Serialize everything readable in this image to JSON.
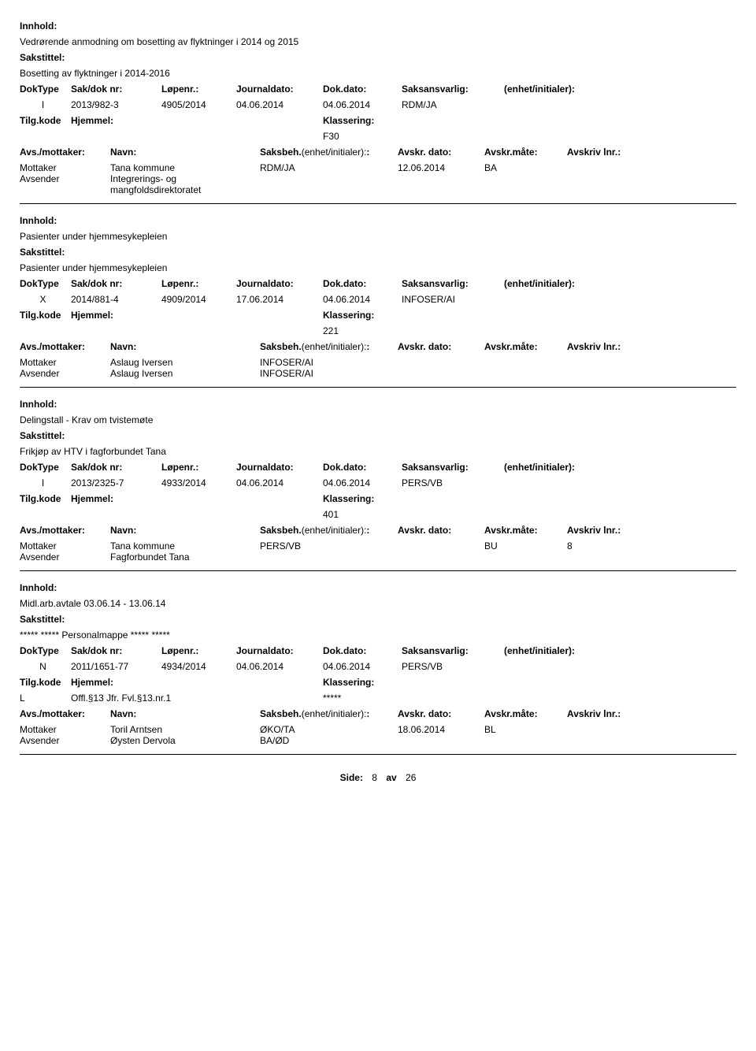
{
  "labels": {
    "innhold": "Innhold:",
    "sakstittel": "Sakstittel:",
    "doktype": "DokType",
    "sakdok": "Sak/dok nr:",
    "lopenr": "Løpenr.:",
    "journaldato": "Journaldato:",
    "dokdato": "Dok.dato:",
    "saksansvarlig": "Saksansvarlig:",
    "enhet": "(enhet/initialer):",
    "tilgkode": "Tilg.kode",
    "hjemmel": "Hjemmel:",
    "klassering": "Klassering:",
    "avsmottaker": "Avs./mottaker:",
    "navn": "Navn:",
    "saksbeh": "Saksbeh.",
    "avskrdato": "Avskr. dato:",
    "avskrmate": "Avskr.måte:",
    "avskriv": "Avskriv lnr.:",
    "mottaker": "Mottaker",
    "avsender": "Avsender"
  },
  "records": [
    {
      "innhold": "Vedrørende anmodning om bosetting av flyktninger i 2014 og 2015",
      "sakstittel": "Bosetting av flyktninger i 2014-2016",
      "doktype": "I",
      "sakdok": "2013/982-3",
      "lopenr": "4905/2014",
      "journaldato": "04.06.2014",
      "dokdato": "04.06.2014",
      "saksansvarlig": "RDM/JA",
      "tilgkode": "",
      "hjemmel": "",
      "klassering": "F30",
      "parties": [
        {
          "role": "Mottaker",
          "name": "Tana kommune",
          "saksbeh": "RDM/JA",
          "avskrdato": "12.06.2014",
          "avskrmate": "BA",
          "avskriv": ""
        },
        {
          "role": "Avsender",
          "name": "Integrerings- og mangfoldsdirektoratet",
          "saksbeh": "",
          "avskrdato": "",
          "avskrmate": "",
          "avskriv": ""
        }
      ]
    },
    {
      "innhold": "Pasienter under hjemmesykepleien",
      "sakstittel": "Pasienter under hjemmesykepleien",
      "doktype": "X",
      "sakdok": "2014/881-4",
      "lopenr": "4909/2014",
      "journaldato": "17.06.2014",
      "dokdato": "04.06.2014",
      "saksansvarlig": "INFOSER/AI",
      "tilgkode": "",
      "hjemmel": "",
      "klassering": "221",
      "parties": [
        {
          "role": "Mottaker",
          "name": "Aslaug Iversen",
          "saksbeh": "INFOSER/AI",
          "avskrdato": "",
          "avskrmate": "",
          "avskriv": ""
        },
        {
          "role": "Avsender",
          "name": "Aslaug Iversen",
          "saksbeh": "INFOSER/AI",
          "avskrdato": "",
          "avskrmate": "",
          "avskriv": ""
        }
      ]
    },
    {
      "innhold": "Delingstall - Krav om tvistemøte",
      "sakstittel": "Frikjøp av HTV i fagforbundet Tana",
      "doktype": "I",
      "sakdok": "2013/2325-7",
      "lopenr": "4933/2014",
      "journaldato": "04.06.2014",
      "dokdato": "04.06.2014",
      "saksansvarlig": "PERS/VB",
      "tilgkode": "",
      "hjemmel": "",
      "klassering": "401",
      "parties": [
        {
          "role": "Mottaker",
          "name": "Tana kommune",
          "saksbeh": "PERS/VB",
          "avskrdato": "",
          "avskrmate": "BU",
          "avskriv": "8"
        },
        {
          "role": "Avsender",
          "name": "Fagforbundet Tana",
          "saksbeh": "",
          "avskrdato": "",
          "avskrmate": "",
          "avskriv": ""
        }
      ]
    },
    {
      "innhold": "Midl.arb.avtale 03.06.14 - 13.06.14",
      "sakstittel": "***** ***** Personalmappe ***** *****",
      "doktype": "N",
      "sakdok": "2011/1651-77",
      "lopenr": "4934/2014",
      "journaldato": "04.06.2014",
      "dokdato": "04.06.2014",
      "saksansvarlig": "PERS/VB",
      "tilgkode": "L",
      "hjemmel": "Offl.§13 Jfr. Fvl.§13.nr.1",
      "klassering": "*****",
      "parties": [
        {
          "role": "Mottaker",
          "name": "Toril Arntsen",
          "saksbeh": "ØKO/TA",
          "avskrdato": "18.06.2014",
          "avskrmate": "BL",
          "avskriv": ""
        },
        {
          "role": "Avsender",
          "name": "Øysten Dervola",
          "saksbeh": "BA/ØD",
          "avskrdato": "",
          "avskrmate": "",
          "avskriv": ""
        }
      ]
    }
  ],
  "footer": {
    "side": "Side:",
    "page": "8",
    "av": "av",
    "total": "26"
  }
}
